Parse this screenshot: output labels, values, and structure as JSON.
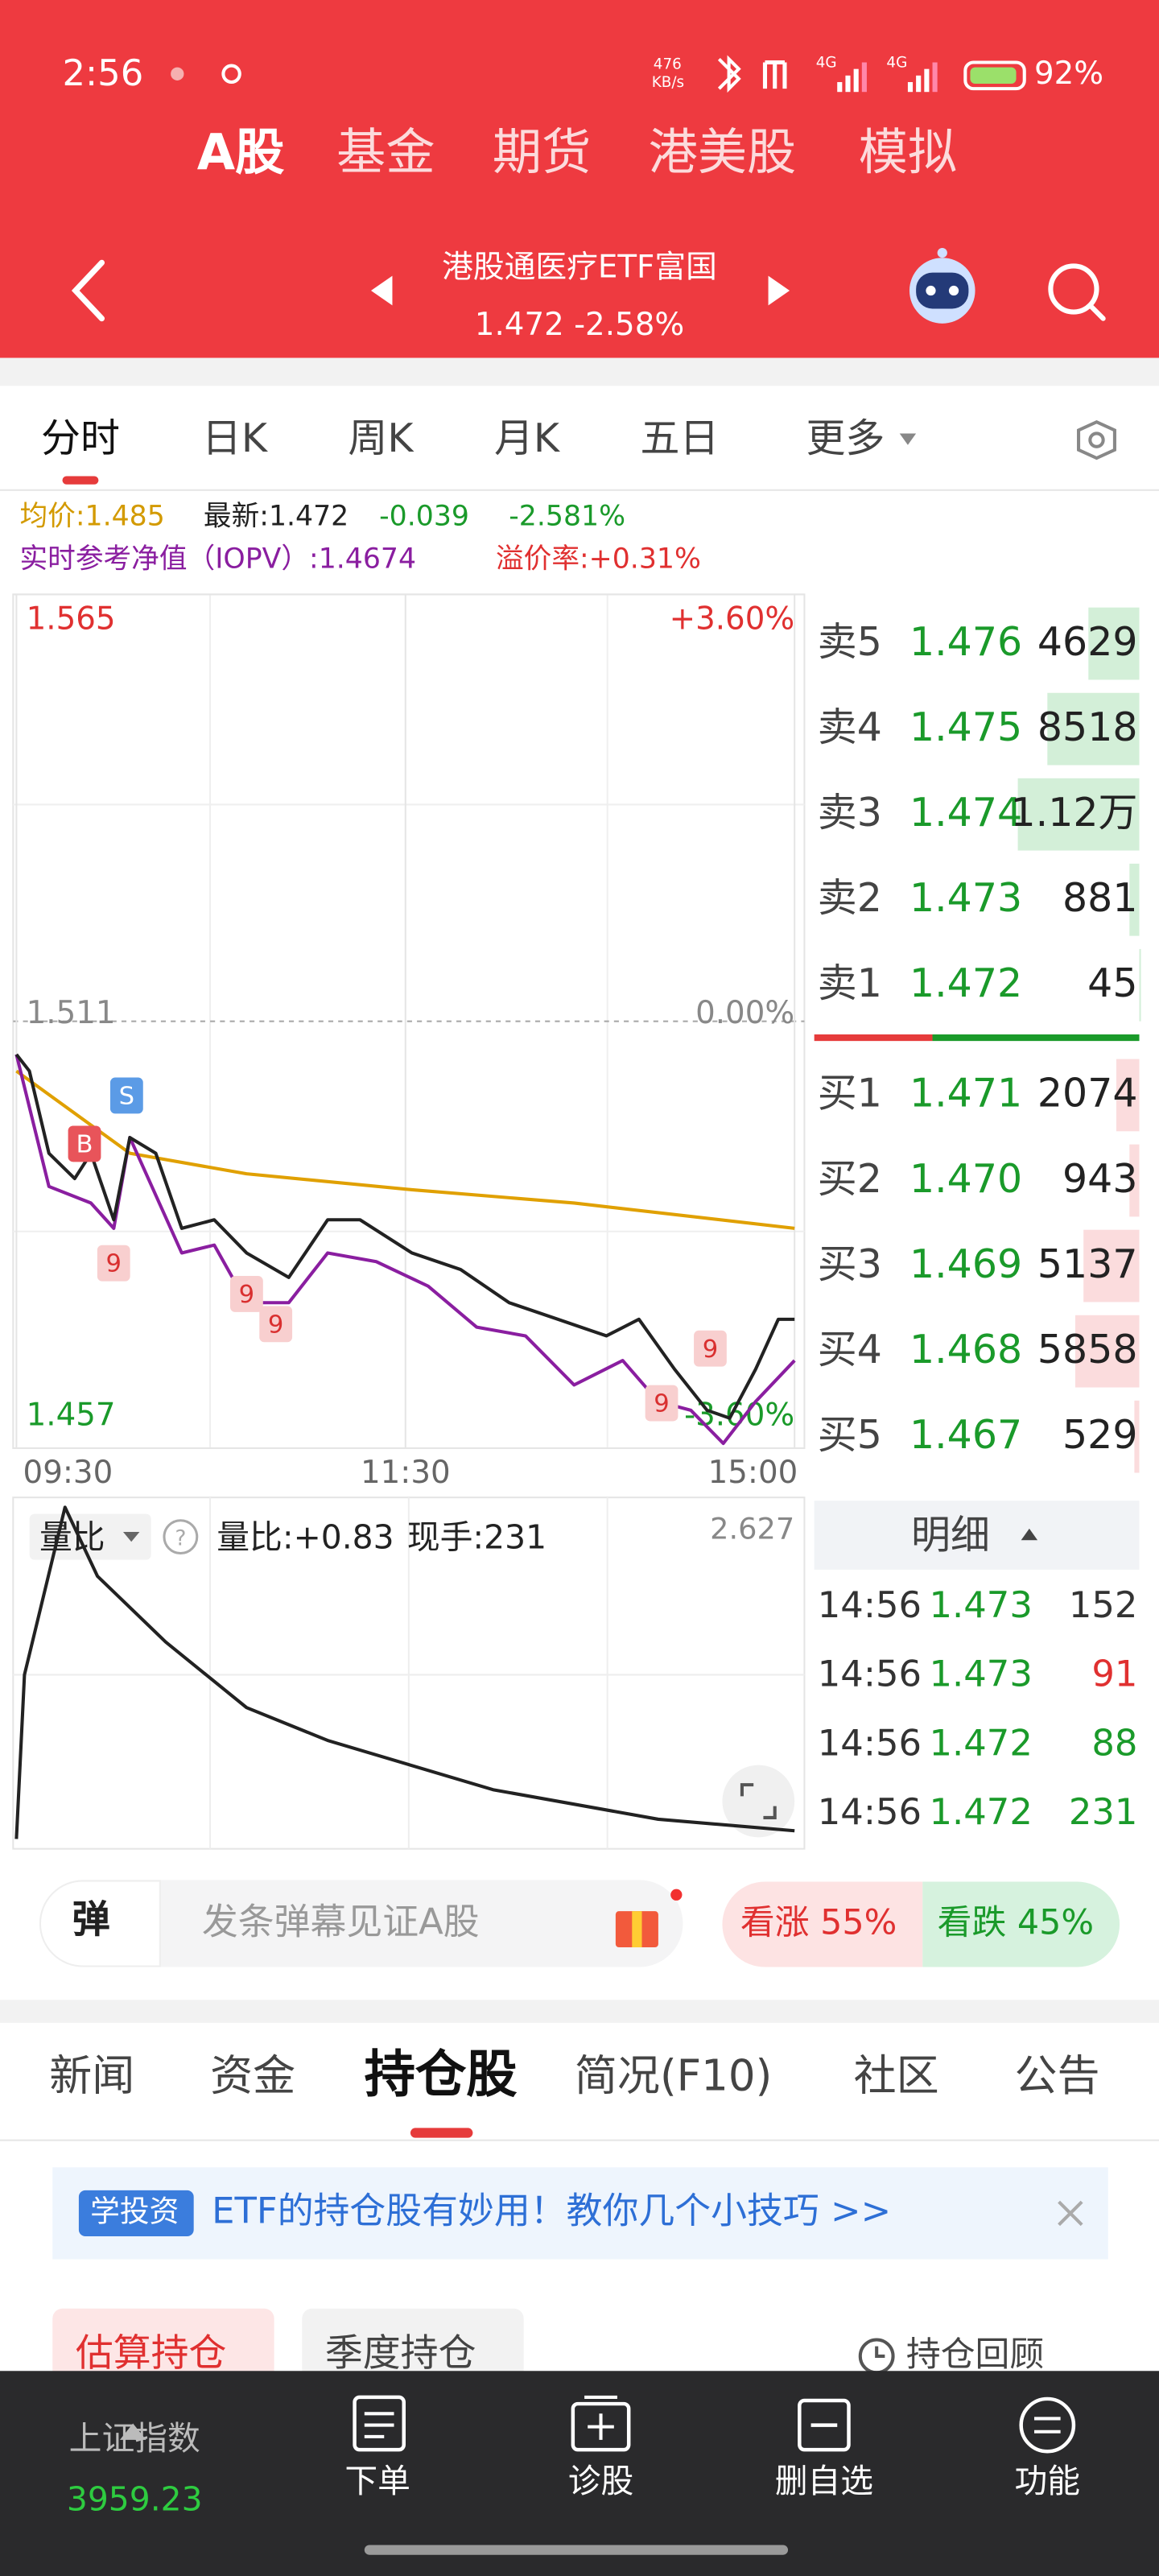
{
  "status": {
    "time": "2:56",
    "speed": "476",
    "speed_unit": "KB/s",
    "network": [
      "4G",
      "4G"
    ],
    "battery": "92%"
  },
  "top_tabs": {
    "items": [
      "A股",
      "基金",
      "期货",
      "港美股",
      "模拟"
    ],
    "selected": 0
  },
  "header": {
    "name": "港股通医疗ETF富国",
    "quote": "1.472 -2.58%"
  },
  "chart_tabs": {
    "items": [
      "分时",
      "日K",
      "周K",
      "月K",
      "五日",
      "更多"
    ],
    "selected": 0
  },
  "info": {
    "avg": "均价:1.485",
    "latest": "最新:1.472",
    "change": "-0.039",
    "pct": "-2.581%",
    "iopv": "实时参考净值（IOPV）:1.4674",
    "premium": "溢价率:+0.31%"
  },
  "chart_data": [
    {
      "type": "line",
      "xlim": [
        0,
        240
      ],
      "xticks": [
        {
          "value": 0,
          "label": "09:30"
        },
        {
          "value": 120,
          "label": "11:30"
        },
        {
          "value": 240,
          "label": "15:00"
        }
      ],
      "ylim": [
        1.457,
        1.565
      ],
      "yticks": [
        1.457,
        1.511,
        1.565
      ],
      "y2lim": [
        -3.6,
        3.6
      ],
      "y2ticks": [
        {
          "value": -3.6,
          "label": "-3.60%"
        },
        {
          "value": 0,
          "label": "0.00%"
        },
        {
          "value": 3.6,
          "label": "+3.60%"
        }
      ],
      "grid": true,
      "series": [
        {
          "color": "#e0a000",
          "x": [
            0,
            35,
            71,
            122,
            172,
            240
          ],
          "values": [
            1.5047,
            1.4943,
            1.4917,
            1.4897,
            1.488,
            1.4848
          ]
        },
        {
          "color": "#8a1ea0",
          "x": [
            0,
            10,
            23,
            30,
            35,
            51,
            61,
            71,
            84,
            96,
            111,
            127,
            142,
            157,
            172,
            187,
            198,
            208,
            218,
            228,
            240
          ],
          "values": [
            1.5068,
            1.4901,
            1.488,
            1.4848,
            1.4963,
            1.4817,
            1.4827,
            1.4754,
            1.4754,
            1.4817,
            1.4806,
            1.4775,
            1.4723,
            1.4712,
            1.465,
            1.4681,
            1.4629,
            1.4618,
            1.4576,
            1.4629,
            1.4681
          ]
        },
        {
          "color": "#222222",
          "x": [
            0,
            4,
            10,
            18,
            23,
            30,
            35,
            43,
            51,
            61,
            71,
            84,
            96,
            106,
            122,
            137,
            152,
            167,
            182,
            192,
            203,
            213,
            220,
            228,
            235,
            240
          ],
          "values": [
            1.5068,
            1.5047,
            1.4943,
            1.4911,
            1.4943,
            1.4859,
            1.4963,
            1.4943,
            1.4848,
            1.4859,
            1.4817,
            1.4786,
            1.4859,
            1.4859,
            1.4817,
            1.4796,
            1.4754,
            1.4733,
            1.4712,
            1.4733,
            1.467,
            1.4618,
            1.4608,
            1.467,
            1.4733,
            1.4733
          ]
        }
      ],
      "annotations": [
        {
          "text": "B",
          "x": 21,
          "y": 1.4955,
          "color": "#e8545a",
          "text_color": "#ffffff"
        },
        {
          "text": "S",
          "x": 34,
          "y": 1.5016,
          "color": "#5b9be6",
          "text_color": "#ffffff"
        },
        {
          "text": "9",
          "x": 30,
          "y": 1.4804,
          "color": "#f8cfcf",
          "text_color": "#d93030"
        },
        {
          "text": "9",
          "x": 71,
          "y": 1.4765,
          "color": "#f8cfcf",
          "text_color": "#d93030"
        },
        {
          "text": "9",
          "x": 80,
          "y": 1.4727,
          "color": "#f8cfcf",
          "text_color": "#d93030"
        },
        {
          "text": "9",
          "x": 214,
          "y": 1.4696,
          "color": "#f8cfcf",
          "text_color": "#d93030"
        },
        {
          "text": "9",
          "x": 199,
          "y": 1.4627,
          "color": "#f8cfcf",
          "text_color": "#d93030"
        }
      ]
    },
    {
      "type": "line",
      "xlim": [
        0,
        240
      ],
      "ylim": [
        0,
        2.627
      ],
      "yticks": [
        2.627
      ],
      "series": [
        {
          "color": "#222222",
          "x": [
            0,
            2.5,
            15,
            25,
            46,
            71,
            96,
            147,
            198,
            240
          ],
          "values": [
            0.076,
            1.339,
            2.627,
            2.097,
            1.591,
            1.086,
            0.834,
            0.455,
            0.227,
            0.139
          ]
        }
      ]
    }
  ],
  "volume_panel": {
    "selector": "量比",
    "ratio": "量比:+0.83",
    "hand": "现手:231"
  },
  "order_book": {
    "asks": [
      {
        "level": "卖5",
        "price": "1.476",
        "volume": 4629
      },
      {
        "level": "卖4",
        "price": "1.475",
        "volume": 8518
      },
      {
        "level": "卖3",
        "price": "1.474",
        "volume": 11200,
        "volume_label": "1.12万"
      },
      {
        "level": "卖2",
        "price": "1.473",
        "volume": 881
      },
      {
        "level": "卖1",
        "price": "1.472",
        "volume": 45
      }
    ],
    "bids": [
      {
        "level": "买1",
        "price": "1.471",
        "volume": 2074
      },
      {
        "level": "买2",
        "price": "1.470",
        "volume": 943
      },
      {
        "level": "买3",
        "price": "1.469",
        "volume": 5137
      },
      {
        "level": "买4",
        "price": "1.468",
        "volume": 5858
      },
      {
        "level": "买5",
        "price": "1.467",
        "volume": 529
      }
    ]
  },
  "details": {
    "title": "明细",
    "rows": [
      {
        "time": "14:56",
        "price": "1.473",
        "volume": "152",
        "color": "#333333"
      },
      {
        "time": "14:56",
        "price": "1.473",
        "volume": "91",
        "color": "#e03030"
      },
      {
        "time": "14:56",
        "price": "1.472",
        "volume": "88",
        "color": "#1a9a2a"
      },
      {
        "time": "14:56",
        "price": "1.472",
        "volume": "231",
        "color": "#1a9a2a"
      }
    ]
  },
  "danmaku": {
    "icon": "弹",
    "placeholder": "发条弹幕见证A股"
  },
  "sentiment": {
    "up": "看涨 55%",
    "down": "看跌 45%"
  },
  "section_tabs": {
    "items": [
      "新闻",
      "资金",
      "持仓股",
      "简况(F10)",
      "社区",
      "公告"
    ],
    "selected": 2
  },
  "banner": {
    "tag": "学投资",
    "text": "ETF的持仓股有妙用！教你几个小技巧 >>"
  },
  "holding_tabs": {
    "estimated": "估算持仓",
    "quarterly": "季度持仓",
    "review": "持仓回顾"
  },
  "nav": {
    "index_name": "上证指数",
    "index_value": "3959.23",
    "items": [
      "下单",
      "诊股",
      "删自选",
      "功能"
    ]
  }
}
